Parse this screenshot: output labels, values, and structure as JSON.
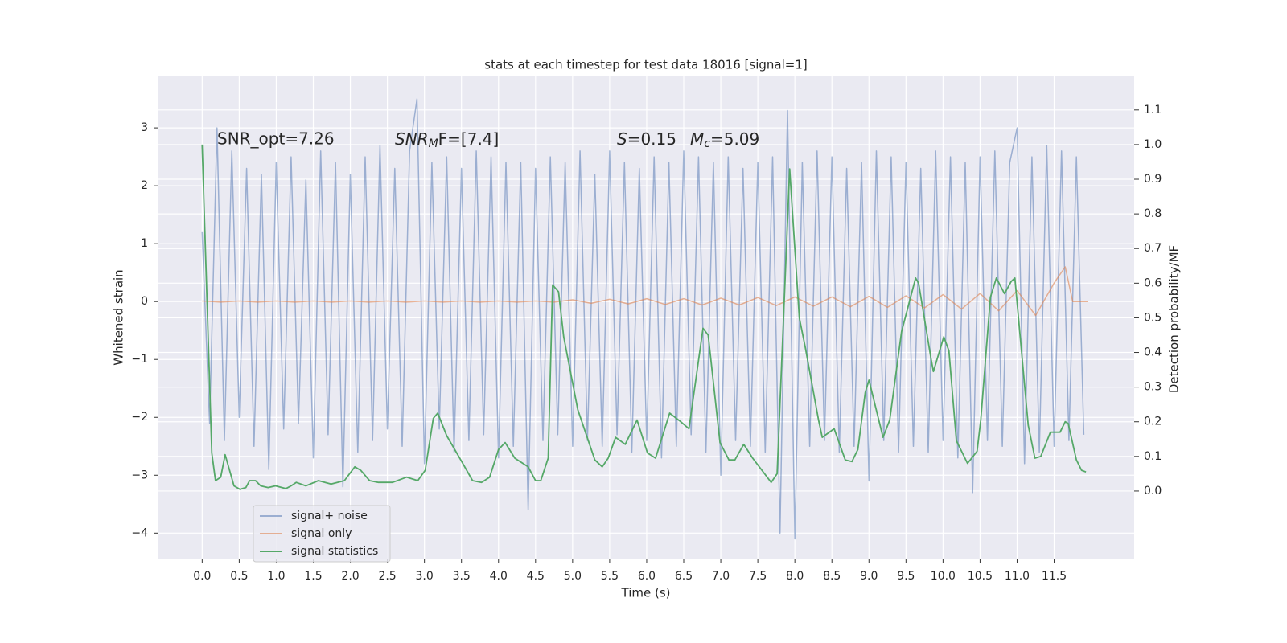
{
  "chart_data": {
    "type": "line",
    "title": "stats at each timestep for test data 18016 [signal=1]",
    "xlabel": "Time (s)",
    "ylabel": "Whitened strain",
    "y2label": "Detection probability/MF",
    "annotations": {
      "snr_opt": "SNR_opt=7.26",
      "snr_mf": [
        "SNR",
        "M",
        "F=[7.4]"
      ],
      "s": [
        "S",
        "=0.15"
      ],
      "mc": [
        "M",
        "c",
        "=5.09"
      ]
    },
    "xlim": [
      -0.59,
      12.58
    ],
    "ylim": [
      -4.44,
      3.89
    ],
    "y2lim": [
      -0.195,
      1.197
    ],
    "grid": true,
    "legend": "lower left",
    "xticks": [
      {
        "value": 0,
        "label": "0.0"
      },
      0.5,
      {
        "value": 1,
        "label": "1.0"
      },
      1.5,
      {
        "value": 2,
        "label": "2.0"
      },
      2.5,
      {
        "value": 3,
        "label": "3.0"
      },
      3.5,
      {
        "value": 4,
        "label": "4.0"
      },
      4.5,
      {
        "value": 5,
        "label": "5.0"
      },
      5.5,
      {
        "value": 6,
        "label": "6.0"
      },
      6.5,
      {
        "value": 7,
        "label": "7.0"
      },
      7.5,
      {
        "value": 8,
        "label": "8.0"
      },
      8.5,
      {
        "value": 9,
        "label": "9.0"
      },
      9.5,
      {
        "value": 10,
        "label": "10.0"
      },
      10.5,
      {
        "value": 11,
        "label": "11.0"
      },
      11.5
    ],
    "yticks": [
      {
        "value": -4,
        "label": "−4"
      },
      {
        "value": -3,
        "label": "−3"
      },
      {
        "value": -2,
        "label": "−2"
      },
      {
        "value": -1,
        "label": "−1"
      },
      0,
      1,
      2,
      3
    ],
    "y2ticks": [
      {
        "value": 0,
        "label": "0.0"
      },
      0.1,
      0.2,
      0.3,
      0.4,
      0.5,
      0.6,
      0.7,
      0.8,
      0.9,
      {
        "value": 1,
        "label": "1.0"
      },
      1.1
    ],
    "series": [
      {
        "name": "signal+ noise",
        "color": "#4c72b0",
        "opacity": 0.5,
        "x": [
          0,
          0.1,
          0.2,
          0.3,
          0.4,
          0.5,
          0.6,
          0.7,
          0.8,
          0.9,
          1,
          1.1,
          1.2,
          1.3,
          1.4,
          1.5,
          1.6,
          1.7,
          1.8,
          1.9,
          2,
          2.1,
          2.2,
          2.3,
          2.4,
          2.5,
          2.6,
          2.7,
          2.8,
          2.9,
          3,
          3.1,
          3.2,
          3.3,
          3.4,
          3.5,
          3.6,
          3.7,
          3.8,
          3.9,
          4,
          4.1,
          4.2,
          4.3,
          4.4,
          4.5,
          4.6,
          4.7,
          4.8,
          4.9,
          5,
          5.1,
          5.2,
          5.3,
          5.4,
          5.5,
          5.6,
          5.7,
          5.8,
          5.9,
          6,
          6.1,
          6.2,
          6.3,
          6.4,
          6.5,
          6.6,
          6.7,
          6.8,
          6.9,
          7,
          7.1,
          7.2,
          7.3,
          7.4,
          7.5,
          7.6,
          7.7,
          7.8,
          7.9,
          8,
          8.1,
          8.2,
          8.3,
          8.4,
          8.5,
          8.6,
          8.7,
          8.8,
          8.9,
          9,
          9.1,
          9.2,
          9.3,
          9.4,
          9.5,
          9.6,
          9.7,
          9.8,
          9.9,
          10,
          10.1,
          10.2,
          10.3,
          10.4,
          10.5,
          10.6,
          10.7,
          10.8,
          10.9,
          11,
          11.1,
          11.2,
          11.3,
          11.4,
          11.5,
          11.6,
          11.7,
          11.8,
          11.9
        ],
        "values": [
          1.2,
          -2.1,
          3.0,
          -2.4,
          2.6,
          -2.0,
          2.3,
          -2.5,
          2.2,
          -2.9,
          2.4,
          -2.2,
          2.5,
          -2.1,
          2.1,
          -2.7,
          2.6,
          -2.3,
          2.4,
          -3.2,
          2.2,
          -2.6,
          2.5,
          -2.4,
          2.7,
          -2.2,
          2.3,
          -2.5,
          2.6,
          3.5,
          -2.8,
          2.4,
          -2.2,
          2.5,
          -2.6,
          2.3,
          -2.4,
          2.6,
          -2.3,
          2.5,
          -2.7,
          2.4,
          -2.5,
          2.4,
          -3.6,
          2.3,
          -2.4,
          2.5,
          -2.3,
          2.4,
          -2.5,
          2.6,
          -2.4,
          2.2,
          -2.5,
          2.6,
          -2.3,
          2.4,
          -2.6,
          2.3,
          -2.4,
          2.5,
          -2.7,
          2.4,
          -2.5,
          2.6,
          -2.3,
          2.5,
          -2.6,
          2.4,
          -3.0,
          2.5,
          -2.4,
          2.3,
          -2.5,
          2.4,
          -2.6,
          2.5,
          -4.0,
          3.3,
          -4.1,
          2.4,
          -2.5,
          2.6,
          -2.4,
          2.5,
          -2.6,
          2.3,
          -2.5,
          2.4,
          -3.1,
          2.6,
          -2.4,
          2.5,
          -2.6,
          2.4,
          -2.5,
          2.3,
          -2.6,
          2.6,
          -2.4,
          2.5,
          -2.7,
          2.4,
          -3.3,
          2.5,
          -2.4,
          2.6,
          -2.5,
          2.4,
          3.0,
          -2.8,
          2.5,
          -2.6,
          2.7,
          -2.5,
          2.6,
          -2.4,
          2.5,
          -2.3
        ]
      },
      {
        "name": "signal only",
        "color": "#dd8452",
        "opacity": 0.6,
        "x": [
          0,
          0.25,
          0.5,
          0.75,
          1,
          1.25,
          1.5,
          1.75,
          2,
          2.25,
          2.5,
          2.75,
          3,
          3.25,
          3.5,
          3.75,
          4,
          4.25,
          4.5,
          4.75,
          5,
          5.25,
          5.5,
          5.75,
          6,
          6.25,
          6.5,
          6.75,
          7,
          7.25,
          7.5,
          7.75,
          8,
          8.25,
          8.5,
          8.75,
          9,
          9.25,
          9.5,
          9.75,
          10,
          10.25,
          10.5,
          10.75,
          11,
          11.25,
          11.5,
          11.65,
          11.75,
          11.95
        ],
        "values": [
          0.01,
          -0.01,
          0.01,
          -0.01,
          0.01,
          -0.01,
          0.01,
          -0.01,
          0.01,
          -0.01,
          0.01,
          -0.01,
          0.01,
          -0.01,
          0.01,
          -0.01,
          0.01,
          -0.01,
          0.01,
          -0.01,
          0.03,
          -0.03,
          0.04,
          -0.04,
          0.05,
          -0.05,
          0.05,
          -0.06,
          0.06,
          -0.06,
          0.07,
          -0.07,
          0.08,
          -0.08,
          0.08,
          -0.09,
          0.09,
          -0.1,
          0.1,
          -0.11,
          0.12,
          -0.13,
          0.14,
          -0.16,
          0.19,
          -0.24,
          0.32,
          0.6,
          0,
          0
        ]
      },
      {
        "name": "signal statistics",
        "color": "#55a868",
        "opacity": 1,
        "axis": "y2",
        "x": [
          0,
          0.13,
          0.18,
          0.25,
          0.31,
          0.43,
          0.51,
          0.59,
          0.64,
          0.72,
          0.79,
          0.89,
          0.99,
          1.13,
          1.2,
          1.27,
          1.4,
          1.57,
          1.74,
          1.92,
          2.06,
          2.14,
          2.26,
          2.38,
          2.57,
          2.76,
          2.91,
          3.01,
          3.12,
          3.18,
          3.3,
          3.49,
          3.65,
          3.77,
          3.88,
          4.0,
          4.09,
          4.22,
          4.4,
          4.5,
          4.57,
          4.67,
          4.73,
          4.81,
          4.88,
          5.07,
          5.3,
          5.4,
          5.48,
          5.58,
          5.71,
          5.87,
          6.01,
          6.12,
          6.31,
          6.46,
          6.57,
          6.76,
          6.83,
          6.99,
          7.11,
          7.19,
          7.31,
          7.43,
          7.68,
          7.76,
          7.93,
          8.06,
          8.14,
          8.32,
          8.37,
          8.53,
          8.68,
          8.77,
          8.85,
          8.95,
          9.0,
          9.19,
          9.28,
          9.44,
          9.63,
          9.67,
          9.84,
          9.87,
          10.01,
          10.08,
          10.18,
          10.33,
          10.46,
          10.51,
          10.64,
          10.72,
          10.83,
          10.92,
          10.97,
          11.15,
          11.24,
          11.32,
          11.45,
          11.58,
          11.65,
          11.69,
          11.8,
          11.87,
          11.93
        ],
        "values": [
          1.0,
          0.11,
          0.03,
          0.04,
          0.105,
          0.015,
          0.005,
          0.01,
          0.03,
          0.03,
          0.015,
          0.01,
          0.015,
          0.007,
          0.015,
          0.025,
          0.015,
          0.03,
          0.02,
          0.03,
          0.07,
          0.06,
          0.03,
          0.025,
          0.025,
          0.04,
          0.03,
          0.06,
          0.21,
          0.225,
          0.16,
          0.09,
          0.03,
          0.025,
          0.04,
          0.12,
          0.14,
          0.095,
          0.07,
          0.03,
          0.03,
          0.095,
          0.595,
          0.575,
          0.445,
          0.235,
          0.09,
          0.07,
          0.095,
          0.155,
          0.135,
          0.205,
          0.11,
          0.095,
          0.225,
          0.2,
          0.18,
          0.47,
          0.45,
          0.14,
          0.09,
          0.09,
          0.135,
          0.095,
          0.025,
          0.05,
          0.93,
          0.5,
          0.415,
          0.205,
          0.155,
          0.18,
          0.09,
          0.085,
          0.12,
          0.285,
          0.32,
          0.155,
          0.205,
          0.46,
          0.615,
          0.6,
          0.38,
          0.345,
          0.445,
          0.405,
          0.145,
          0.08,
          0.115,
          0.205,
          0.56,
          0.615,
          0.57,
          0.605,
          0.615,
          0.19,
          0.095,
          0.1,
          0.17,
          0.17,
          0.2,
          0.195,
          0.09,
          0.06,
          0.055
        ]
      }
    ]
  }
}
